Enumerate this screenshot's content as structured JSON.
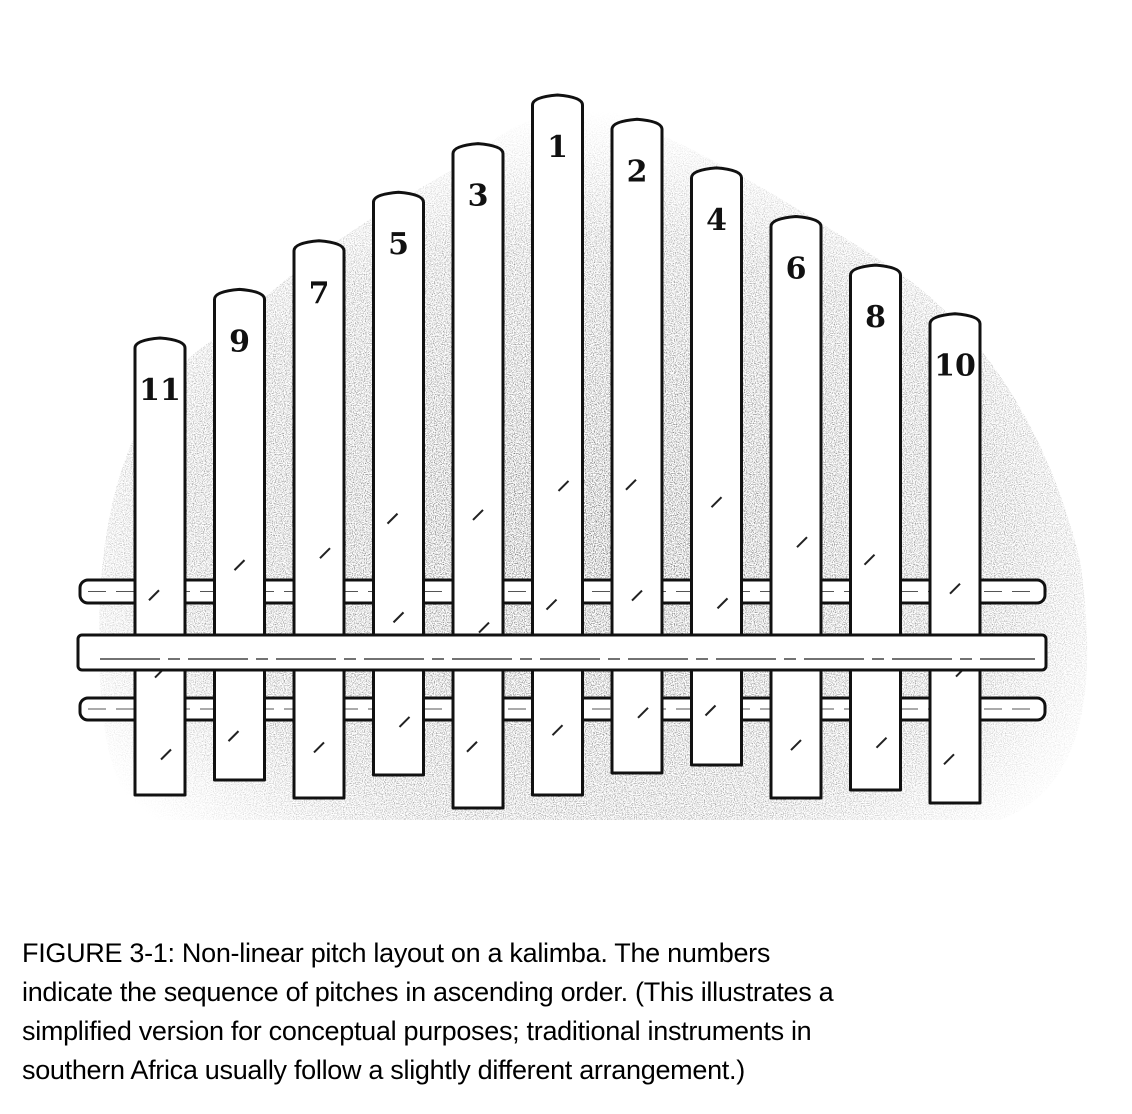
{
  "figure": {
    "tines": [
      {
        "label": "11",
        "pitch_order": 11
      },
      {
        "label": "9",
        "pitch_order": 9
      },
      {
        "label": "7",
        "pitch_order": 7
      },
      {
        "label": "5",
        "pitch_order": 5
      },
      {
        "label": "3",
        "pitch_order": 3
      },
      {
        "label": "1",
        "pitch_order": 1
      },
      {
        "label": "2",
        "pitch_order": 2
      },
      {
        "label": "4",
        "pitch_order": 4
      },
      {
        "label": "6",
        "pitch_order": 6
      },
      {
        "label": "8",
        "pitch_order": 8
      },
      {
        "label": "10",
        "pitch_order": 10
      }
    ]
  },
  "caption": {
    "lines": [
      "FIGURE 3-1: Non-linear pitch layout on a kalimba. The numbers",
      "indicate the sequence of pitches in ascending order. (This illustrates a",
      "simplified version for conceptual purposes; traditional instruments in",
      "southern Africa usually follow  a slightly different arrangement.)"
    ]
  }
}
